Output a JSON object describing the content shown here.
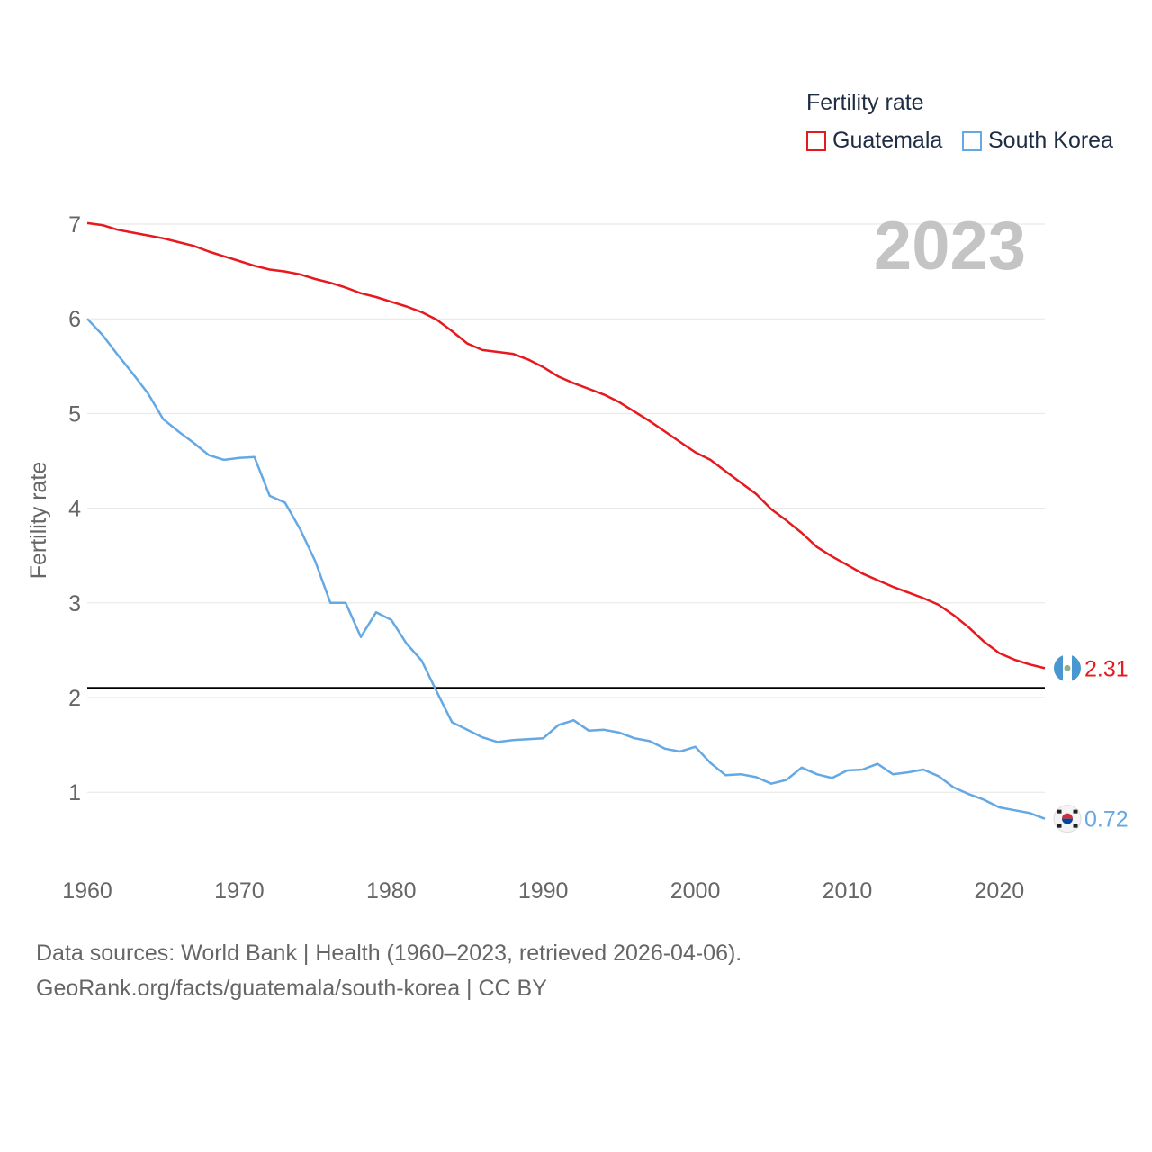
{
  "legend": {
    "title": "Fertility rate",
    "items": [
      {
        "label": "Guatemala",
        "color": "#e8191e"
      },
      {
        "label": "South Korea",
        "color": "#64a8e4"
      }
    ]
  },
  "source": {
    "line1": "Data sources: World Bank | Health (1960–2023, retrieved 2026-04-06).",
    "line2": "GeoRank.org/facts/guatemala/south-korea | CC BY"
  },
  "chart_data": {
    "type": "line",
    "year_label": "2023",
    "ylabel": "Fertility rate",
    "xlabel": "",
    "xlim": [
      1960,
      2023
    ],
    "ylim": [
      0.3,
      7.1
    ],
    "x_ticks": [
      1960,
      1970,
      1980,
      1990,
      2000,
      2010,
      2020
    ],
    "y_ticks": [
      1,
      2,
      3,
      4,
      5,
      6,
      7
    ],
    "reference_line": 2.1,
    "x": [
      1960,
      1961,
      1962,
      1963,
      1964,
      1965,
      1966,
      1967,
      1968,
      1969,
      1970,
      1971,
      1972,
      1973,
      1974,
      1975,
      1976,
      1977,
      1978,
      1979,
      1980,
      1981,
      1982,
      1983,
      1984,
      1985,
      1986,
      1987,
      1988,
      1989,
      1990,
      1991,
      1992,
      1993,
      1994,
      1995,
      1996,
      1997,
      1998,
      1999,
      2000,
      2001,
      2002,
      2003,
      2004,
      2005,
      2006,
      2007,
      2008,
      2009,
      2010,
      2011,
      2012,
      2013,
      2014,
      2015,
      2016,
      2017,
      2018,
      2019,
      2020,
      2021,
      2022,
      2023
    ],
    "series": [
      {
        "name": "Guatemala",
        "color": "#e8191e",
        "end_label": "2.31",
        "values": [
          7.01,
          6.99,
          6.94,
          6.91,
          6.88,
          6.85,
          6.81,
          6.77,
          6.71,
          6.66,
          6.61,
          6.56,
          6.52,
          6.5,
          6.47,
          6.42,
          6.38,
          6.33,
          6.27,
          6.23,
          6.18,
          6.13,
          6.07,
          5.99,
          5.87,
          5.74,
          5.67,
          5.65,
          5.63,
          5.57,
          5.49,
          5.39,
          5.32,
          5.26,
          5.2,
          5.12,
          5.02,
          4.92,
          4.81,
          4.7,
          4.59,
          4.51,
          4.39,
          4.27,
          4.15,
          3.99,
          3.87,
          3.74,
          3.59,
          3.49,
          3.4,
          3.31,
          3.24,
          3.17,
          3.11,
          3.05,
          2.98,
          2.87,
          2.74,
          2.59,
          2.47,
          2.4,
          2.35,
          2.31
        ]
      },
      {
        "name": "South Korea",
        "color": "#64a8e4",
        "end_label": "0.72",
        "values": [
          6.0,
          5.83,
          5.62,
          5.42,
          5.21,
          4.94,
          4.81,
          4.69,
          4.56,
          4.51,
          4.53,
          4.54,
          4.13,
          4.06,
          3.78,
          3.44,
          3.0,
          3.0,
          2.64,
          2.9,
          2.82,
          2.57,
          2.39,
          2.06,
          1.74,
          1.66,
          1.58,
          1.53,
          1.55,
          1.56,
          1.57,
          1.71,
          1.76,
          1.65,
          1.66,
          1.63,
          1.57,
          1.54,
          1.46,
          1.43,
          1.48,
          1.31,
          1.18,
          1.19,
          1.16,
          1.09,
          1.13,
          1.26,
          1.19,
          1.15,
          1.23,
          1.24,
          1.3,
          1.19,
          1.21,
          1.24,
          1.17,
          1.05,
          0.98,
          0.92,
          0.84,
          0.81,
          0.78,
          0.72
        ]
      }
    ]
  }
}
